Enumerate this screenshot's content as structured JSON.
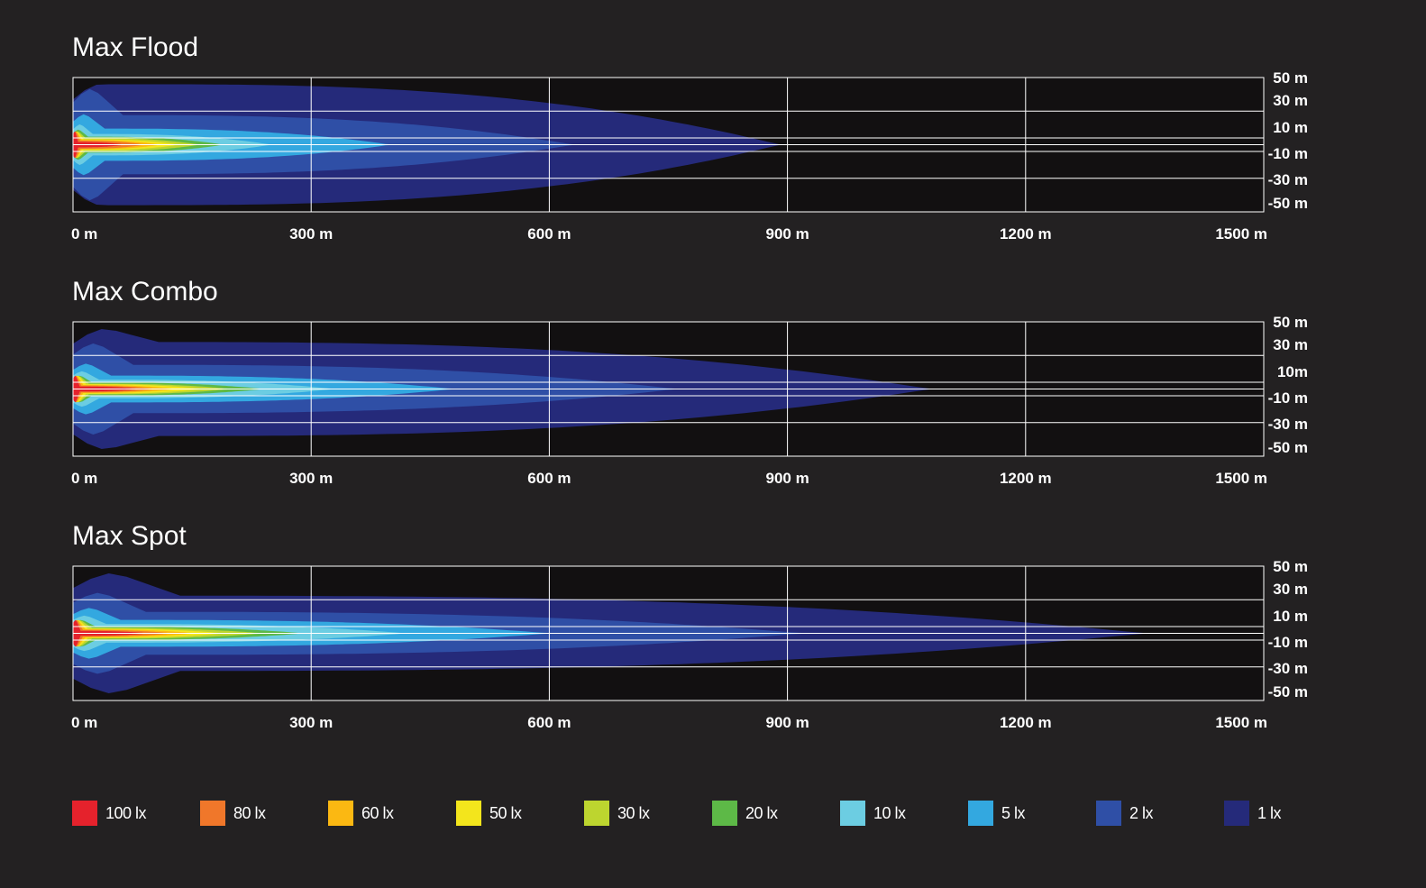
{
  "chart_data": [
    {
      "type": "heatmap",
      "title": "Max Flood",
      "x_ticks": [
        "0 m",
        "300 m",
        "600 m",
        "900 m",
        "1200 m",
        "1500 m"
      ],
      "y_ticks": [
        "50 m",
        "30 m",
        "10 m",
        "-10 m",
        "-30 m",
        "-50 m"
      ],
      "xlim": [
        0,
        1500
      ],
      "ylim": [
        -50,
        50
      ],
      "grid": true,
      "levels": [
        {
          "lux": "1 lx",
          "reach_m": 890,
          "half_width_m": 45
        },
        {
          "lux": "2 lx",
          "reach_m": 630,
          "half_width_m": 22
        },
        {
          "lux": "5 lx",
          "reach_m": 400,
          "half_width_m": 12
        },
        {
          "lux": "10 lx",
          "reach_m": 250,
          "half_width_m": 8
        },
        {
          "lux": "20 lx",
          "reach_m": 190,
          "half_width_m": 6
        },
        {
          "lux": "30 lx",
          "reach_m": 160,
          "half_width_m": 5
        },
        {
          "lux": "50 lx",
          "reach_m": 135,
          "half_width_m": 4
        },
        {
          "lux": "60 lx",
          "reach_m": 110,
          "half_width_m": 3.5
        },
        {
          "lux": "80 lx",
          "reach_m": 90,
          "half_width_m": 3
        },
        {
          "lux": "100 lx",
          "reach_m": 65,
          "half_width_m": 2
        }
      ]
    },
    {
      "type": "heatmap",
      "title": "Max Combo",
      "x_ticks": [
        "0 m",
        "300 m",
        "600 m",
        "900 m",
        "1200 m",
        "1500 m"
      ],
      "y_ticks": [
        "50 m",
        "30 m",
        "10m",
        "-10 m",
        "-30 m",
        "-50 m"
      ],
      "xlim": [
        0,
        1500
      ],
      "ylim": [
        -50,
        50
      ],
      "grid": true,
      "levels": [
        {
          "lux": "1 lx",
          "reach_m": 1080,
          "half_width_m": 35
        },
        {
          "lux": "2 lx",
          "reach_m": 760,
          "half_width_m": 18
        },
        {
          "lux": "5 lx",
          "reach_m": 480,
          "half_width_m": 10
        },
        {
          "lux": "10 lx",
          "reach_m": 330,
          "half_width_m": 7
        },
        {
          "lux": "20 lx",
          "reach_m": 240,
          "half_width_m": 5
        },
        {
          "lux": "30 lx",
          "reach_m": 200,
          "half_width_m": 4
        },
        {
          "lux": "50 lx",
          "reach_m": 165,
          "half_width_m": 3.5
        },
        {
          "lux": "60 lx",
          "reach_m": 130,
          "half_width_m": 3
        },
        {
          "lux": "80 lx",
          "reach_m": 105,
          "half_width_m": 2.5
        },
        {
          "lux": "100 lx",
          "reach_m": 85,
          "half_width_m": 1.8
        }
      ]
    },
    {
      "type": "heatmap",
      "title": "Max Spot",
      "x_ticks": [
        "0 m",
        "300 m",
        "600 m",
        "900 m",
        "1200 m",
        "1500 m"
      ],
      "y_ticks": [
        "50 m",
        "30 m",
        "10 m",
        "-10 m",
        "-30 m",
        "-50 m"
      ],
      "xlim": [
        0,
        1500
      ],
      "ylim": [
        -50,
        50
      ],
      "grid": true,
      "levels": [
        {
          "lux": "1 lx",
          "reach_m": 1350,
          "half_width_m": 28
        },
        {
          "lux": "2 lx",
          "reach_m": 920,
          "half_width_m": 16
        },
        {
          "lux": "5 lx",
          "reach_m": 600,
          "half_width_m": 10
        },
        {
          "lux": "10 lx",
          "reach_m": 420,
          "half_width_m": 7
        },
        {
          "lux": "20 lx",
          "reach_m": 290,
          "half_width_m": 5
        },
        {
          "lux": "30 lx",
          "reach_m": 240,
          "half_width_m": 4
        },
        {
          "lux": "50 lx",
          "reach_m": 190,
          "half_width_m": 3.5
        },
        {
          "lux": "60 lx",
          "reach_m": 155,
          "half_width_m": 3
        },
        {
          "lux": "80 lx",
          "reach_m": 125,
          "half_width_m": 2.5
        },
        {
          "lux": "100 lx",
          "reach_m": 95,
          "half_width_m": 1.8
        }
      ]
    }
  ],
  "legend": [
    {
      "label": "100 lx",
      "color": "#e5222c"
    },
    {
      "label": "80 lx",
      "color": "#f0772a"
    },
    {
      "label": "60 lx",
      "color": "#fbb812"
    },
    {
      "label": "50 lx",
      "color": "#f3e51c"
    },
    {
      "label": "30 lx",
      "color": "#bdd52f"
    },
    {
      "label": "20 lx",
      "color": "#5db947"
    },
    {
      "label": "10 lx",
      "color": "#6ccde2"
    },
    {
      "label": "5 lx",
      "color": "#33a8e0"
    },
    {
      "label": "2 lx",
      "color": "#2f4fa6"
    },
    {
      "label": "1 lx",
      "color": "#252a7a"
    }
  ],
  "colors": {
    "background": "#232122",
    "plot_background": "#121011",
    "grid": "#ffffff"
  }
}
